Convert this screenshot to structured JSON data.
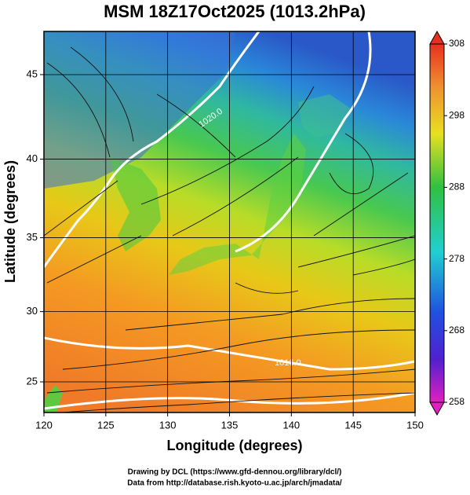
{
  "title": "MSM 18Z17Oct2025 (1013.2hPa)",
  "x_axis": {
    "label": "Longitude (degrees)",
    "lim": [
      120,
      150
    ],
    "ticks": [
      120,
      125,
      130,
      135,
      140,
      145,
      150
    ]
  },
  "y_axis": {
    "label": "Latitude  (degrees)",
    "lim": [
      22.75,
      47.4
    ],
    "ticks": [
      25,
      30,
      35,
      40,
      45
    ]
  },
  "colorbar": {
    "lim": [
      258,
      308
    ],
    "ticks": [
      258,
      268,
      278,
      288,
      298,
      308
    ]
  },
  "contour_labels": [
    "1020.0",
    "1016.0"
  ],
  "credits": [
    "Drawing by DCL (https://www.gfd-dennou.org/library/dcl/)",
    "Data from http://database.rish.kyoto-u.ac.jp/arch/jmadata/"
  ]
}
